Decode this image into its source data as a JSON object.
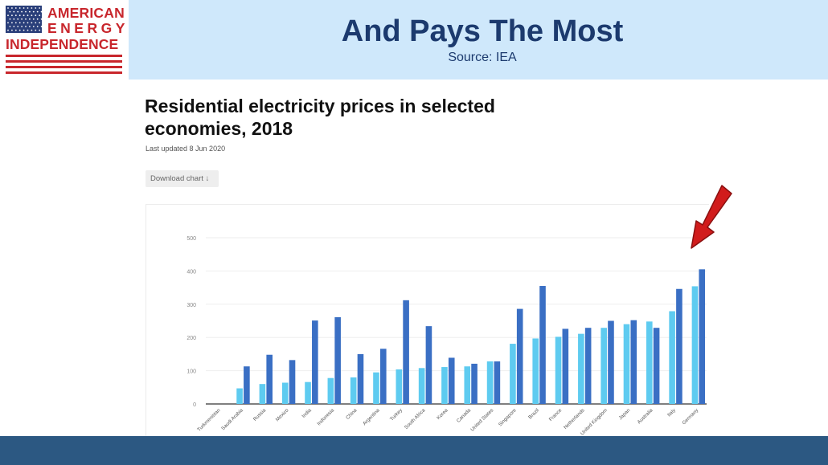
{
  "logo": {
    "line1": "AMERICAN",
    "line2": "ENERGY",
    "line3": "INDEPENDENCE"
  },
  "slide": {
    "title": "And Pays The Most",
    "source": "Source: IEA"
  },
  "chart_header": {
    "title": "Residential electricity prices in selected economies, 2018",
    "updated": "Last updated 8 Jun 2020",
    "download": "Download chart ↓"
  },
  "colors": {
    "header_band": "#cfe8fb",
    "title_text": "#1c3a6e",
    "logo_red": "#c8262c",
    "bottom_band": "#2c5882",
    "series_light": "#5ecbf0",
    "series_dark": "#3a6fc4",
    "arrow_red": "#d11c1c"
  },
  "chart_data": {
    "type": "bar",
    "ylim": [
      0,
      500
    ],
    "yticks": [
      "0",
      "100",
      "200",
      "300",
      "400",
      "500"
    ],
    "grid": true,
    "categories": [
      "Turkmenistan",
      "Saudi Arabia",
      "Russia",
      "Mexico",
      "India",
      "Indonesia",
      "China",
      "Argentina",
      "Turkey",
      "South Africa",
      "Korea",
      "Canada",
      "United States",
      "Singapore",
      "Brazil",
      "France",
      "Netherlands",
      "United Kingdom",
      "Japan",
      "Australia",
      "Italy",
      "Germany"
    ],
    "series": [
      {
        "color": "#5ecbf0",
        "values": [
          0,
          47,
          60,
          64,
          66,
          78,
          80,
          95,
          104,
          108,
          111,
          113,
          128,
          181,
          197,
          202,
          211,
          229,
          240,
          248,
          279,
          354
        ]
      },
      {
        "color": "#3a6fc4",
        "values": [
          0,
          113,
          148,
          132,
          251,
          261,
          150,
          166,
          312,
          234,
          139,
          121,
          128,
          286,
          355,
          226,
          229,
          250,
          252,
          229,
          346,
          405
        ]
      }
    ]
  }
}
